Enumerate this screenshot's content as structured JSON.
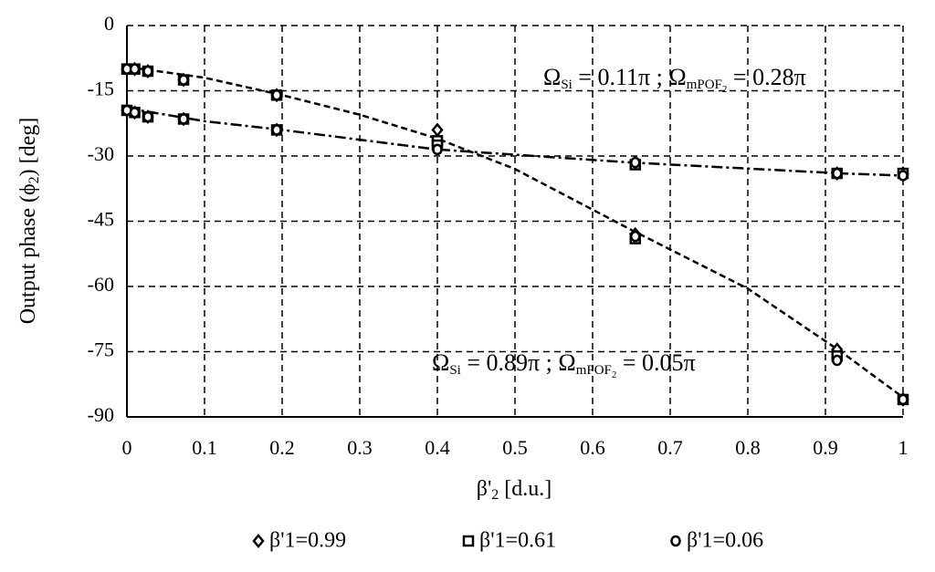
{
  "chart_data": {
    "type": "scatter",
    "x_label": [
      "β'",
      "2",
      " [d.u.]"
    ],
    "y_label": [
      "Output phase (ϕ",
      "2",
      ") [deg]"
    ],
    "annotations": [
      [
        "Ω",
        "Si",
        " = 0.11π ; Ω",
        "mPOF",
        "2",
        " = 0.28π"
      ],
      [
        "Ω",
        "Si",
        " = 0.89π ; Ω",
        "mPOF",
        "2",
        " = 0.05π"
      ]
    ],
    "xlim": [
      0,
      1
    ],
    "ylim": [
      -90,
      0
    ],
    "xticks": [
      0,
      0.1,
      0.2,
      0.3,
      0.4,
      0.5,
      0.6,
      0.7,
      0.8,
      0.9,
      1
    ],
    "yticks": [
      0,
      -15,
      -30,
      -45,
      -60,
      -75,
      -90
    ],
    "grid": true,
    "x": [
      0,
      0.01,
      0.027,
      0.073,
      0.193,
      0.4,
      0.655,
      0.915,
      1,
      0,
      0.01,
      0.027,
      0.073,
      0.193,
      0.4,
      0.655,
      0.915,
      1
    ],
    "series": [
      {
        "name": "β'1=0.99",
        "marker": "diamond",
        "color": "#000000",
        "values": [
          -10,
          -10,
          -10.5,
          -12.5,
          -16,
          -24,
          -48,
          -74.5,
          -86,
          -19.5,
          -20,
          -21,
          -21.5,
          -24,
          -27,
          -31.5,
          -34,
          -34
        ]
      },
      {
        "name": "β'1=0.61",
        "marker": "square",
        "color": "#000000",
        "values": [
          -10,
          -10,
          -10.5,
          -12.5,
          -16,
          -26.5,
          -49,
          -76,
          -86,
          -19.5,
          -20,
          -21,
          -21.5,
          -24,
          -27.5,
          -32,
          -34,
          -34
        ]
      },
      {
        "name": "β'1=0.06",
        "marker": "circle",
        "color": "#000000",
        "values": [
          -10,
          -10,
          -10.5,
          -12.5,
          -16,
          -28.5,
          -48.5,
          -77,
          -86,
          -19.5,
          -20,
          -21,
          -21.5,
          -24,
          -28.5,
          -31.5,
          -34,
          -34.5
        ]
      }
    ],
    "trendlines": [
      {
        "dash": "dashed",
        "x": [
          0,
          0.1,
          0.2,
          0.3,
          0.4,
          0.5,
          0.65,
          0.8,
          0.92,
          1
        ],
        "values": [
          -9.5,
          -12,
          -16,
          -20.5,
          -26,
          -33,
          -47,
          -60.5,
          -75,
          -85.5
        ]
      },
      {
        "dash": "dashdot",
        "x": [
          0,
          0.1,
          0.2,
          0.4,
          0.65,
          0.92,
          1
        ],
        "values": [
          -19,
          -22,
          -24,
          -28.5,
          -31.5,
          -34,
          -34.5
        ]
      }
    ]
  }
}
